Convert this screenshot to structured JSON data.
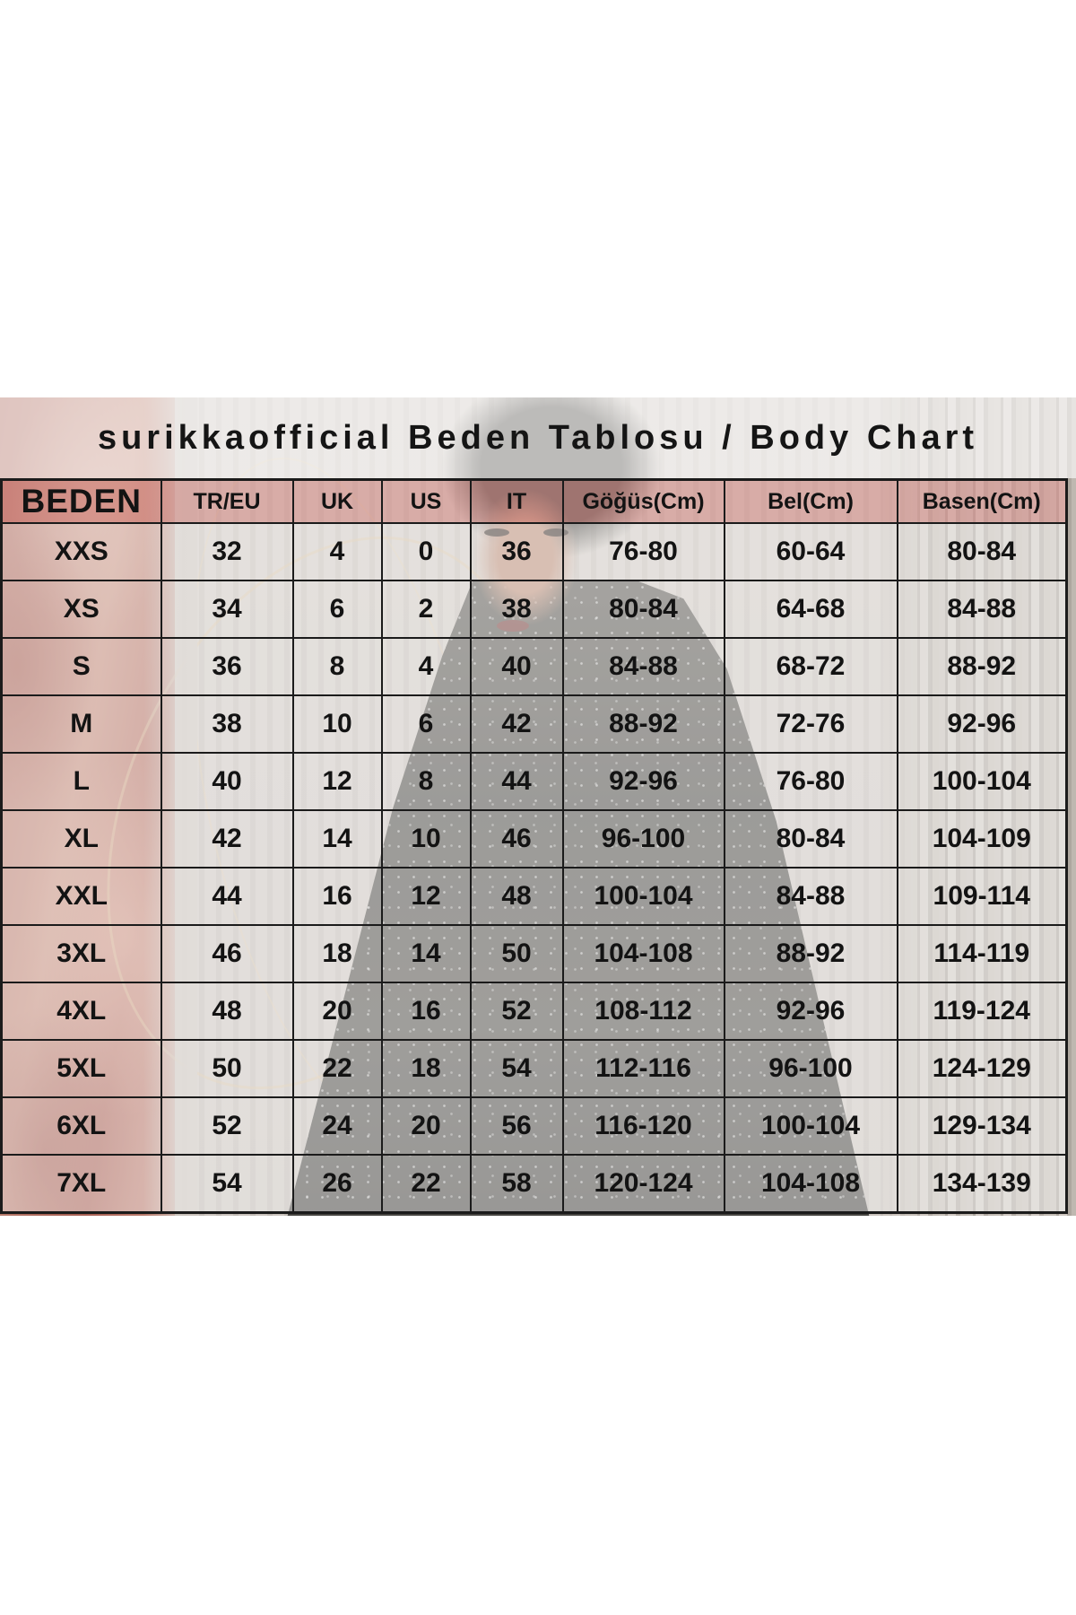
{
  "title": "surikkaofficial Beden Tablosu / Body Chart",
  "chart_data": {
    "type": "table",
    "title": "surikkaofficial Beden Tablosu / Body Chart",
    "columns": [
      "BEDEN",
      "TR/EU",
      "UK",
      "US",
      "IT",
      "Göğüs(Cm)",
      "Bel(Cm)",
      "Basen(Cm)"
    ],
    "rows": [
      [
        "XXS",
        "32",
        "4",
        "0",
        "36",
        "76-80",
        "60-64",
        "80-84"
      ],
      [
        "XS",
        "34",
        "6",
        "2",
        "38",
        "80-84",
        "64-68",
        "84-88"
      ],
      [
        "S",
        "36",
        "8",
        "4",
        "40",
        "84-88",
        "68-72",
        "88-92"
      ],
      [
        "M",
        "38",
        "10",
        "6",
        "42",
        "88-92",
        "72-76",
        "92-96"
      ],
      [
        "L",
        "40",
        "12",
        "8",
        "44",
        "92-96",
        "76-80",
        "100-104"
      ],
      [
        "XL",
        "42",
        "14",
        "10",
        "46",
        "96-100",
        "80-84",
        "104-109"
      ],
      [
        "XXL",
        "44",
        "16",
        "12",
        "48",
        "100-104",
        "84-88",
        "109-114"
      ],
      [
        "3XL",
        "46",
        "18",
        "14",
        "50",
        "104-108",
        "88-92",
        "114-119"
      ],
      [
        "4XL",
        "48",
        "20",
        "16",
        "52",
        "108-112",
        "92-96",
        "119-124"
      ],
      [
        "5XL",
        "50",
        "22",
        "18",
        "54",
        "112-116",
        "96-100",
        "124-129"
      ],
      [
        "6XL",
        "52",
        "24",
        "20",
        "56",
        "116-120",
        "100-104",
        "129-134"
      ],
      [
        "7XL",
        "54",
        "26",
        "22",
        "58",
        "120-124",
        "104-108",
        "134-139"
      ]
    ]
  },
  "colors": {
    "header_pink": "#d5b1ae",
    "cell_overlay": "#ddd9d4",
    "border": "#1b1b1b",
    "text": "#131313",
    "left_artwork_red": "#b87369",
    "wood_panel": "#b7b1aa",
    "dress_gray": "#4f4d48",
    "page_background": "#ffffff"
  }
}
